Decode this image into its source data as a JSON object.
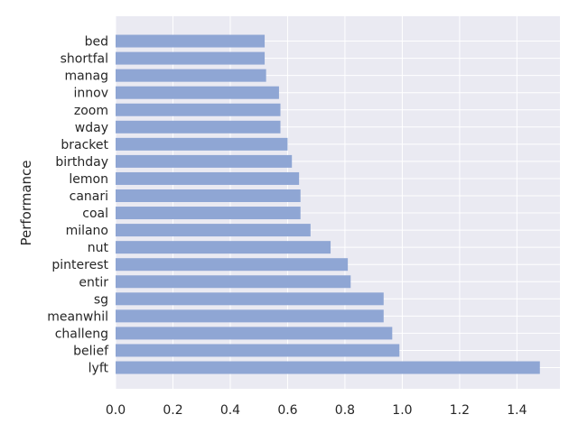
{
  "chart_data": {
    "type": "bar",
    "orientation": "horizontal",
    "title": "",
    "xlabel": "",
    "ylabel": "Performance",
    "xlim": [
      0,
      1.55
    ],
    "xticks": [
      0.0,
      0.2,
      0.4,
      0.6,
      0.8,
      1.0,
      1.2,
      1.4
    ],
    "xtick_labels": [
      "0.0",
      "0.2",
      "0.4",
      "0.6",
      "0.8",
      "1.0",
      "1.2",
      "1.4"
    ],
    "grid": true,
    "colors": {
      "bar": "#8fa6d4",
      "background": "#eaeaf2",
      "grid": "#ffffff"
    },
    "categories": [
      "lyft",
      "belief",
      "challeng",
      "meanwhil",
      "sg",
      "entir",
      "pinterest",
      "nut",
      "milano",
      "coal",
      "canari",
      "lemon",
      "birthday",
      "bracket",
      "wday",
      "zoom",
      "innov",
      "manag",
      "shortfal",
      "bed"
    ],
    "values": [
      1.48,
      0.99,
      0.965,
      0.935,
      0.935,
      0.82,
      0.81,
      0.75,
      0.68,
      0.645,
      0.645,
      0.64,
      0.615,
      0.6,
      0.575,
      0.575,
      0.57,
      0.525,
      0.52,
      0.52
    ]
  }
}
